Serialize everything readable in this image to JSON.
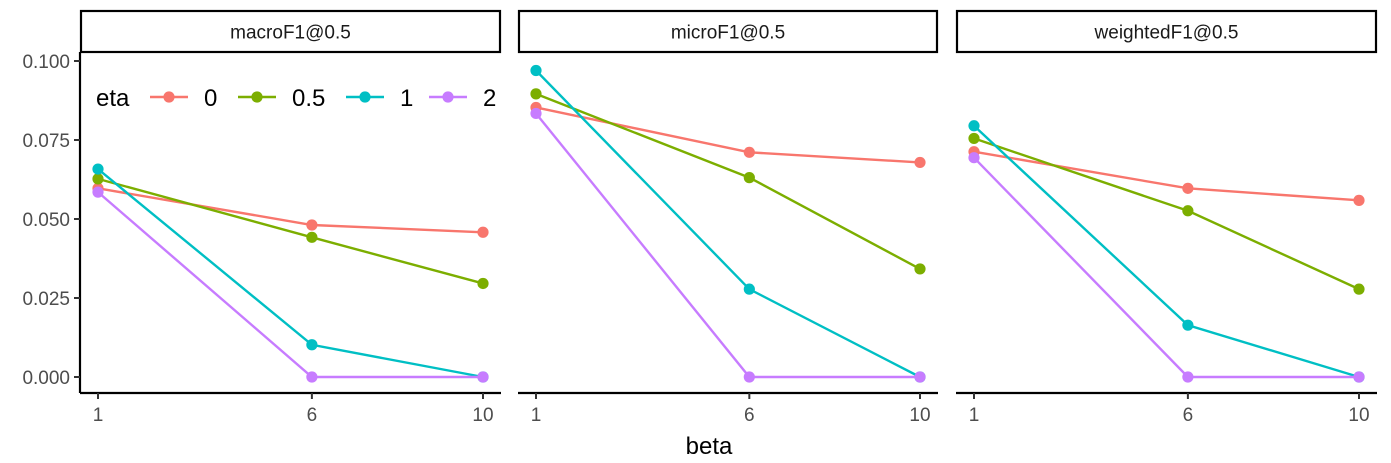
{
  "chart_data": {
    "type": "line",
    "facet_by": "metric",
    "xlabel": "beta",
    "ylabel": "",
    "x": [
      1,
      6,
      10
    ],
    "xticks": [
      "1",
      "6",
      "10"
    ],
    "ylim": [
      0,
      0.1
    ],
    "yticks": [
      "0.000",
      "0.025",
      "0.050",
      "0.075",
      "0.100"
    ],
    "ytick_values": [
      0,
      0.025,
      0.05,
      0.075,
      0.1
    ],
    "legend": {
      "title": "eta",
      "placement": "top-left, inside first panel",
      "entries": [
        "0",
        "0.5",
        "1",
        "2"
      ]
    },
    "series_colors": {
      "0": "#F8766D",
      "0.5": "#7CAE00",
      "1": "#00BFC4",
      "2": "#C77CFF"
    },
    "panels": [
      {
        "title": "macroF1@0.5",
        "series": [
          {
            "name": "0",
            "values": [
              0.0597,
              0.0481,
              0.0458
            ]
          },
          {
            "name": "0.5",
            "values": [
              0.0627,
              0.0442,
              0.0296
            ]
          },
          {
            "name": "1",
            "values": [
              0.0658,
              0.0102,
              0.0
            ]
          },
          {
            "name": "2",
            "values": [
              0.0585,
              0.0,
              0.0
            ]
          }
        ]
      },
      {
        "title": "microF1@0.5",
        "series": [
          {
            "name": "0",
            "values": [
              0.0853,
              0.0711,
              0.0679
            ]
          },
          {
            "name": "0.5",
            "values": [
              0.0896,
              0.0631,
              0.0342
            ]
          },
          {
            "name": "1",
            "values": [
              0.097,
              0.0278,
              0.0
            ]
          },
          {
            "name": "2",
            "values": [
              0.0834,
              0.0,
              0.0
            ]
          }
        ]
      },
      {
        "title": "weightedF1@0.5",
        "series": [
          {
            "name": "0",
            "values": [
              0.0713,
              0.0597,
              0.0559
            ]
          },
          {
            "name": "0.5",
            "values": [
              0.0755,
              0.0526,
              0.0278
            ]
          },
          {
            "name": "1",
            "values": [
              0.0795,
              0.0164,
              0.0
            ]
          },
          {
            "name": "2",
            "values": [
              0.0694,
              0.0,
              0.0
            ]
          }
        ]
      }
    ]
  }
}
